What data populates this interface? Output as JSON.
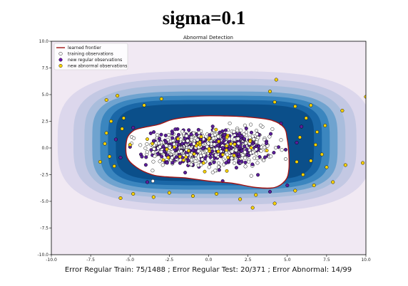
{
  "figure": {
    "suptitle": "sigma=0.1"
  },
  "chart_data": {
    "type": "scatter",
    "title": "Abnormal Detection",
    "xlabel": "Error Regular Train: 75/1488 ; Error Regular Test: 20/371 ; Error Abnormal: 14/99",
    "ylabel": "",
    "xlim": [
      -10,
      10
    ],
    "ylim": [
      -10,
      10
    ],
    "x_ticks": [
      -10.0,
      -7.5,
      -5.0,
      -2.5,
      0.0,
      2.5,
      5.0,
      7.5,
      10.0
    ],
    "y_ticks": [
      -10.0,
      -7.5,
      -5.0,
      -2.5,
      0.0,
      2.5,
      5.0,
      7.5,
      10.0
    ],
    "legend": {
      "placement": "top-left",
      "entries": [
        {
          "label": "learned frontier",
          "kind": "line",
          "color": "#8b1a1a"
        },
        {
          "label": "training observations",
          "kind": "marker",
          "color": "#ffffff"
        },
        {
          "label": "new regular observations",
          "kind": "marker",
          "color": "#6a0dad"
        },
        {
          "label": "new abnormal observations",
          "kind": "marker",
          "color": "#ffd700"
        }
      ]
    },
    "colors": {
      "background": "#f1e9f3",
      "frontier": "#a01515",
      "inside": "#ffffff",
      "train": "#ffffff",
      "regular": "#5b1e9a",
      "abnormal": "#f7d000"
    },
    "decision_levels": [
      {
        "a": 10.0,
        "b": 6.6,
        "x0": 0.4,
        "y0": 0.6,
        "n": 3.2,
        "color": "#dcd7ec"
      },
      {
        "a": 9.0,
        "b": 5.9,
        "x0": 0.4,
        "y0": 0.6,
        "n": 3.4,
        "color": "#c3c8e3"
      },
      {
        "a": 8.3,
        "b": 5.3,
        "x0": 0.4,
        "y0": 0.6,
        "n": 3.6,
        "color": "#a9bddc"
      },
      {
        "a": 7.8,
        "b": 4.8,
        "x0": 0.4,
        "y0": 0.5,
        "n": 3.8,
        "color": "#6fa3cf"
      },
      {
        "a": 7.3,
        "b": 4.4,
        "x0": 0.4,
        "y0": 0.5,
        "n": 4.0,
        "color": "#3b86bf"
      },
      {
        "a": 6.8,
        "b": 4.0,
        "x0": 0.4,
        "y0": 0.5,
        "n": 4.2,
        "color": "#1a67a7"
      },
      {
        "a": 6.3,
        "b": 3.6,
        "x0": 0.4,
        "y0": 0.5,
        "n": 4.4,
        "color": "#0b4f8a"
      }
    ],
    "frontier": [
      [
        -3.2,
        2.2
      ],
      [
        -2.2,
        2.7
      ],
      [
        -0.5,
        3.0
      ],
      [
        1.0,
        3.0
      ],
      [
        2.5,
        2.9
      ],
      [
        4.0,
        2.6
      ],
      [
        4.8,
        1.9
      ],
      [
        5.0,
        0.8
      ],
      [
        5.1,
        -0.6
      ],
      [
        5.1,
        -2.0
      ],
      [
        4.9,
        -3.0
      ],
      [
        4.2,
        -3.7
      ],
      [
        3.0,
        -3.7
      ],
      [
        1.5,
        -3.3
      ],
      [
        0.0,
        -3.1
      ],
      [
        -1.5,
        -2.8
      ],
      [
        -2.7,
        -2.7
      ],
      [
        -3.6,
        -2.5
      ],
      [
        -4.6,
        -1.8
      ],
      [
        -5.2,
        -0.8
      ],
      [
        -5.2,
        0.8
      ],
      [
        -4.8,
        1.6
      ],
      [
        -4.2,
        1.9
      ]
    ],
    "clusters": [
      {
        "cx": -1.5,
        "cy": 0.0,
        "sx": 2.2,
        "sy": 1.3,
        "n": 220,
        "kind": "train"
      },
      {
        "cx": 1.5,
        "cy": 0.0,
        "sx": 2.2,
        "sy": 1.3,
        "n": 220,
        "kind": "train"
      },
      {
        "cx": -1.5,
        "cy": 0.0,
        "sx": 2.0,
        "sy": 1.2,
        "n": 170,
        "kind": "regular"
      },
      {
        "cx": 1.5,
        "cy": 0.0,
        "sx": 2.0,
        "sy": 1.2,
        "n": 170,
        "kind": "regular"
      }
    ],
    "abnormal_points": [
      [
        -6.5,
        1.4
      ],
      [
        -6.6,
        0.4
      ],
      [
        -6.3,
        -0.8
      ],
      [
        -6.0,
        -1.7
      ],
      [
        -6.5,
        4.5
      ],
      [
        -5.8,
        4.9
      ],
      [
        -6.2,
        2.5
      ],
      [
        -5.5,
        1.8
      ],
      [
        -5.6,
        -4.7
      ],
      [
        -4.8,
        -4.3
      ],
      [
        -3.5,
        -4.6
      ],
      [
        -2.5,
        -4.2
      ],
      [
        -1.0,
        -4.5
      ],
      [
        0.5,
        -4.3
      ],
      [
        2.0,
        -4.8
      ],
      [
        3.0,
        -4.4
      ],
      [
        2.8,
        -5.6
      ],
      [
        4.2,
        -5.2
      ],
      [
        5.5,
        -4.0
      ],
      [
        6.0,
        -2.5
      ],
      [
        6.5,
        -1.2
      ],
      [
        6.8,
        0.3
      ],
      [
        6.9,
        1.5
      ],
      [
        7.2,
        -0.6
      ],
      [
        7.5,
        -1.8
      ],
      [
        7.4,
        2.1
      ],
      [
        6.2,
        2.8
      ],
      [
        5.5,
        3.9
      ],
      [
        4.2,
        4.3
      ],
      [
        6.5,
        4.0
      ],
      [
        8.5,
        3.5
      ],
      [
        8.7,
        -1.6
      ],
      [
        9.8,
        -1.4
      ],
      [
        10.0,
        4.8
      ],
      [
        4.3,
        6.4
      ],
      [
        -4.1,
        4.0
      ],
      [
        -5.4,
        2.8
      ],
      [
        5.8,
        1.0
      ],
      [
        5.6,
        -1.3
      ],
      [
        7.9,
        -3.2
      ],
      [
        6.7,
        -3.5
      ],
      [
        -5.0,
        0.3
      ],
      [
        -6.9,
        -1.3
      ],
      [
        3.9,
        5.3
      ],
      [
        -3.0,
        4.6
      ]
    ],
    "mixed_regular_outside": [
      [
        -4.8,
        1.9
      ],
      [
        -5.0,
        0.1
      ],
      [
        -5.6,
        -0.9
      ],
      [
        5.6,
        0.5
      ],
      [
        5.0,
        -3.5
      ],
      [
        4.6,
        2.3
      ],
      [
        -3.9,
        -3.2
      ],
      [
        3.9,
        -4.1
      ],
      [
        5.9,
        2.0
      ],
      [
        -5.9,
        0.8
      ]
    ]
  }
}
